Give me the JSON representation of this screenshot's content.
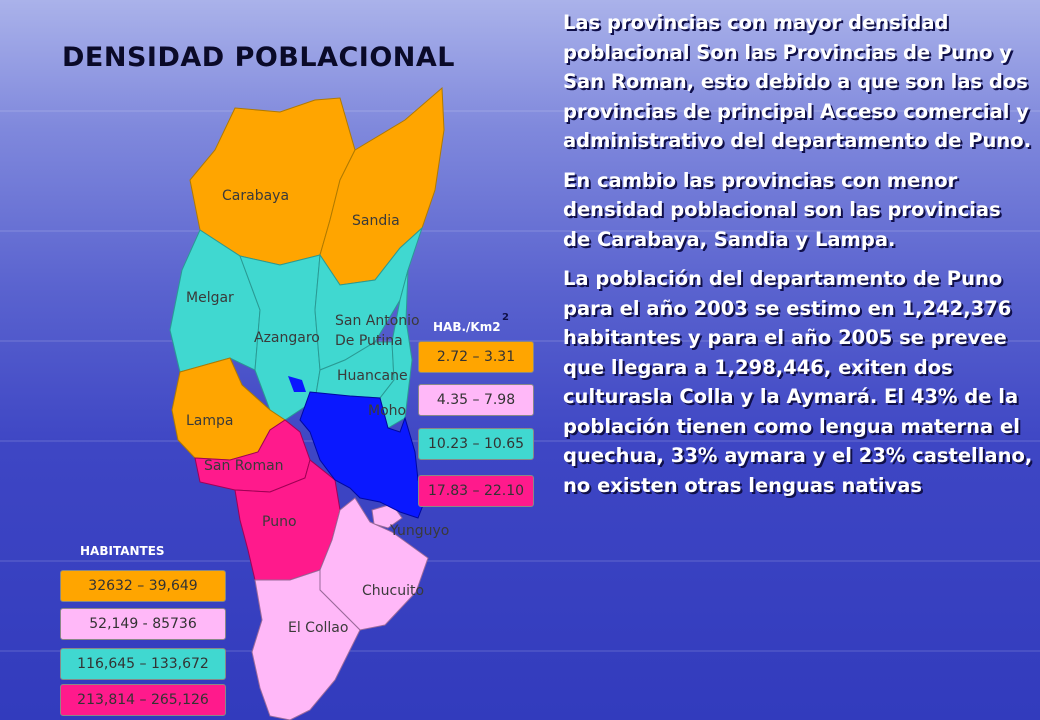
{
  "slide": {
    "title": "DENSIDAD POBLACIONAL",
    "paragraphs": [
      "Las provincias con mayor densidad poblacional Son las Provincias de Puno y San Roman, esto debido a que son las dos provincias de principal Acceso comercial y administrativo del departamento de Puno.",
      "En cambio las provincias con menor densidad poblacional son las provincias de Carabaya, Sandia y Lampa.",
      "La población del departamento de Puno para el año 2003 se estimo en 1,242,376 habitantes y para el año 2005 se prevee que llegara a 1,298,446, exiten dos culturasla Colla y la Aymará. El 43% de la población tienen como lengua materna el quechua, 33% aymara y el 23% castellano, no existen otras lenguas nativas"
    ]
  },
  "map": {
    "provinces": {
      "carabaya": "Carabaya",
      "sandia": "Sandia",
      "melgar": "Melgar",
      "azangaro": "Azangaro",
      "san_antonio_1": "San Antonio",
      "san_antonio_2": "De Putina",
      "huancane": "Huancane",
      "moho": "Moho",
      "lampa": "Lampa",
      "san_roman": "San Roman",
      "puno": "Puno",
      "yunguyo": "Yunguyo",
      "chucuito": "Chucuito",
      "el_collao": "El Collao"
    },
    "colors": {
      "orange": "#ffa500",
      "teal": "#40d8d0",
      "pink": "#ff1a8c",
      "lilac": "#ffb8f8",
      "lake": "#0a18ff"
    }
  },
  "legend_density": {
    "header": "HAB./Km2",
    "superscript": "2",
    "items": [
      "2.72 – 3.31",
      "4.35 – 7.98",
      "10.23 – 10.65",
      "17.83 – 22.10"
    ],
    "colors": [
      "#ffa500",
      "#ffb8f8",
      "#40d8d0",
      "#ff1a8c"
    ]
  },
  "legend_population": {
    "header": "HABITANTES",
    "items": [
      "32632 – 39,649",
      "52,149 - 85736",
      "116,645 – 133,672",
      "213,814 – 265,126"
    ],
    "colors": [
      "#ffa500",
      "#ffb8f8",
      "#40d8d0",
      "#ff1a8c"
    ]
  }
}
